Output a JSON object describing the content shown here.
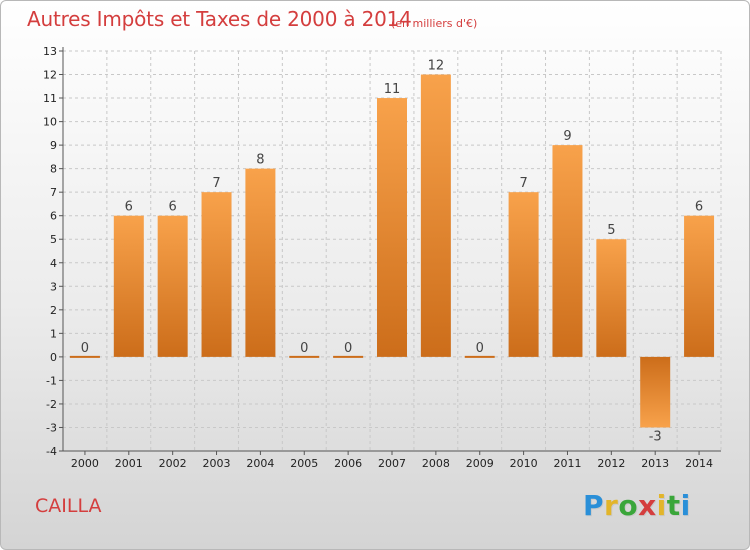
{
  "title": "Autres Impôts et Taxes de 2000 à 2014",
  "subtitle": "(en milliers d'€)",
  "location": "CAILLA",
  "logo": {
    "letters": [
      "P",
      "r",
      "o",
      "x",
      "i",
      "t",
      "i"
    ],
    "colors": [
      "#2a8fd8",
      "#e2b52a",
      "#3aa63a",
      "#d43e3e",
      "#e2b52a",
      "#3aa63a",
      "#2a8fd8"
    ]
  },
  "colors": {
    "title": "#d43e3e",
    "bar_light": "#f8a24b",
    "bar_dark": "#cc6d1a"
  },
  "chart_data": {
    "type": "bar",
    "categories": [
      "2000",
      "2001",
      "2002",
      "2003",
      "2004",
      "2005",
      "2006",
      "2007",
      "2008",
      "2009",
      "2010",
      "2011",
      "2012",
      "2013",
      "2014"
    ],
    "values": [
      0,
      6,
      6,
      7,
      8,
      0,
      0,
      11,
      12,
      0,
      7,
      9,
      5,
      -3,
      6
    ],
    "data_labels": [
      "0",
      "6",
      "6",
      "7",
      "8",
      "0",
      "0",
      "11",
      "12",
      "0",
      "7",
      "9",
      "5",
      "-3",
      "6"
    ],
    "y_ticks": [
      -4,
      -3,
      -2,
      -1,
      0,
      1,
      2,
      3,
      4,
      5,
      6,
      7,
      8,
      9,
      10,
      11,
      12,
      13
    ],
    "ylim": [
      -4,
      13
    ],
    "grid": true,
    "legend": "none"
  }
}
